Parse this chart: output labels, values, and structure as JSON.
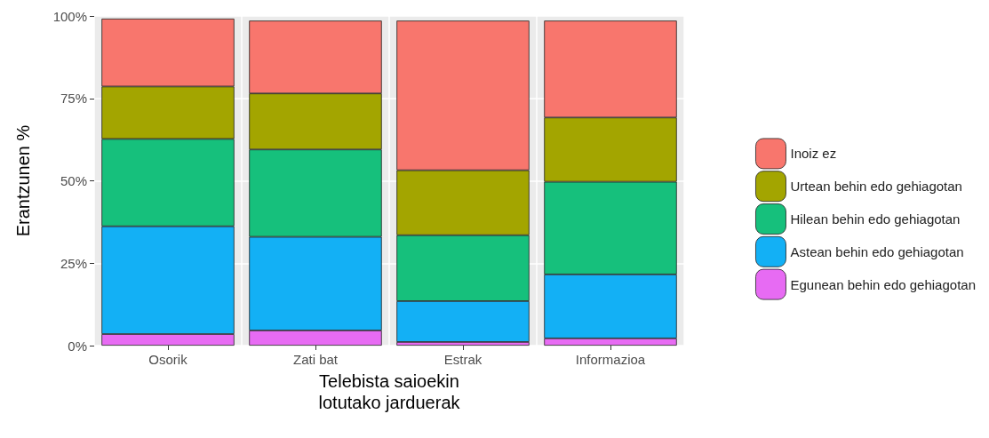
{
  "chart_data": {
    "type": "bar",
    "stacked": true,
    "xlabel": "Telebista saioekin\nlotutako jarduerak",
    "ylabel": "Erantzunen %",
    "categories": [
      "Osorik",
      "Zati bat",
      "Estrak",
      "Informazioa"
    ],
    "series": [
      {
        "name": "Egunean behin edo gehiagotan",
        "color": "#e76bf3",
        "values": [
          3.5,
          4.6,
          1.1,
          2.2
        ]
      },
      {
        "name": "Astean behin edo gehiagotan",
        "color": "#13b0f5",
        "values": [
          32.7,
          28.4,
          12.4,
          19.4
        ]
      },
      {
        "name": "Hilean behin edo gehiagotan",
        "color": "#16c07c",
        "values": [
          26.5,
          26.5,
          20.0,
          28.1
        ]
      },
      {
        "name": "Urtean behin edo gehiagotan",
        "color": "#a3a500",
        "values": [
          15.9,
          17.0,
          19.7,
          19.5
        ]
      },
      {
        "name": "Inoiz ez",
        "color": "#f8766d",
        "values": [
          20.6,
          22.1,
          45.4,
          29.4
        ]
      }
    ],
    "ylim": [
      0,
      100
    ],
    "yticks": [
      {
        "value": 0,
        "label": "0%"
      },
      {
        "value": 25,
        "label": "25%"
      },
      {
        "value": 50,
        "label": "50%"
      },
      {
        "value": 75,
        "label": "75%"
      },
      {
        "value": 100,
        "label": "100%"
      }
    ],
    "grid": true,
    "legend": "right"
  }
}
